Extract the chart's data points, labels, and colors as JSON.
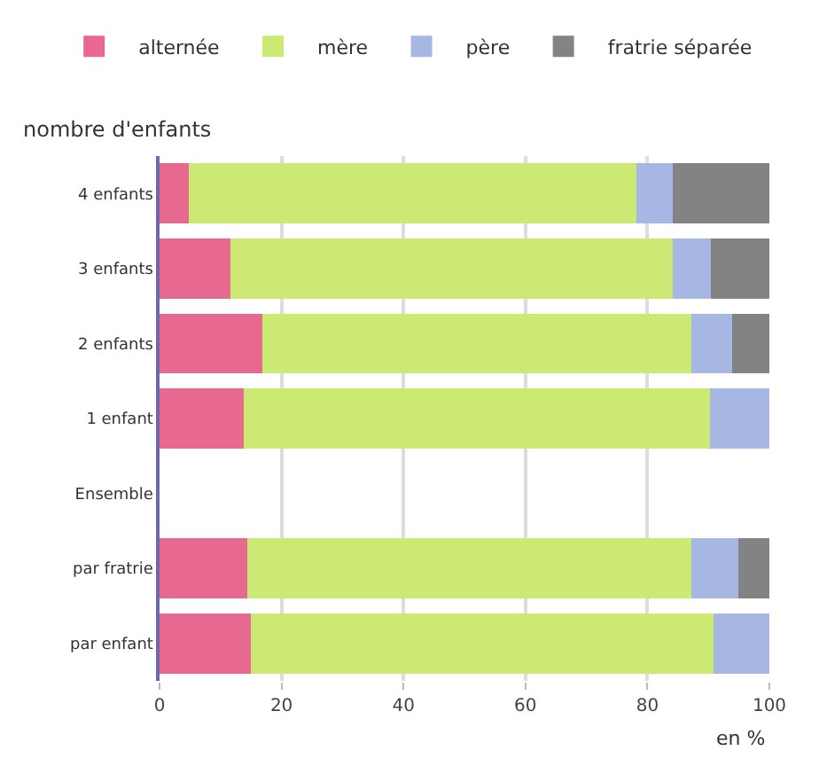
{
  "chart_data": {
    "type": "bar",
    "orientation": "horizontal",
    "stacked": true,
    "ylabel": "nombre d'enfants",
    "xlabel": "en %",
    "categories": [
      "4 enfants",
      "3 enfants",
      "2 enfants",
      "1 enfant",
      "Ensemble",
      "par fratrie",
      "par enfant"
    ],
    "series": [
      {
        "name": "alternée",
        "color": "#e8698f",
        "values": [
          4.8,
          11.6,
          16.8,
          13.8,
          null,
          14.4,
          15.0
        ]
      },
      {
        "name": "mère",
        "color": "#cce974",
        "values": [
          73.4,
          72.5,
          70.4,
          76.4,
          null,
          72.8,
          75.9
        ]
      },
      {
        "name": "père",
        "color": "#a7b7e3",
        "values": [
          5.9,
          6.3,
          6.7,
          9.8,
          null,
          7.7,
          9.1
        ]
      },
      {
        "name": "fratrie séparée",
        "color": "#838383",
        "values": [
          15.9,
          9.6,
          6.1,
          null,
          null,
          5.1,
          null
        ]
      }
    ],
    "xlim": [
      0,
      100
    ],
    "xticks": [
      0,
      20,
      40,
      60,
      80,
      100
    ],
    "grid": "x",
    "legend": "top"
  }
}
